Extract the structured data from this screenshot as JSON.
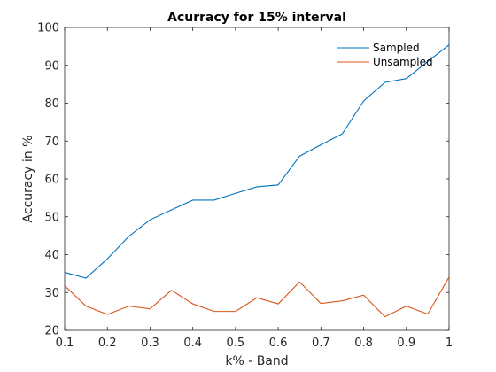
{
  "chart_data": {
    "type": "line",
    "title": "Acurracy for 15% interval",
    "xlabel": "k% - Band",
    "ylabel": "Accuracy in %",
    "xlim": [
      0.1,
      1
    ],
    "ylim": [
      20,
      100
    ],
    "grid": false,
    "legend_position": "top-right",
    "x_ticks": [
      "0.1",
      "0.2",
      "0.3",
      "0.4",
      "0.5",
      "0.6",
      "0.7",
      "0.8",
      "0.9",
      "1"
    ],
    "y_ticks": [
      "20",
      "30",
      "40",
      "50",
      "60",
      "70",
      "80",
      "90",
      "100"
    ],
    "x": [
      0.1,
      0.15,
      0.2,
      0.25,
      0.3,
      0.35,
      0.4,
      0.45,
      0.5,
      0.55,
      0.6,
      0.65,
      0.7,
      0.75,
      0.8,
      0.85,
      0.9,
      0.95,
      1.0
    ],
    "series": [
      {
        "name": "Sampled",
        "color": "#0072BD",
        "values": [
          35.3,
          33.8,
          38.9,
          44.8,
          49.2,
          51.8,
          54.4,
          54.4,
          56.2,
          57.9,
          58.4,
          66.0,
          69.0,
          71.9,
          80.6,
          85.5,
          86.5,
          91.0,
          95.4
        ]
      },
      {
        "name": "Unsampled",
        "color": "#D95319",
        "values": [
          31.8,
          26.4,
          24.2,
          26.4,
          25.7,
          30.6,
          27.0,
          25.0,
          25.0,
          28.6,
          27.0,
          32.8,
          27.1,
          27.8,
          29.3,
          23.6,
          26.4,
          24.3,
          34.1
        ]
      }
    ]
  }
}
